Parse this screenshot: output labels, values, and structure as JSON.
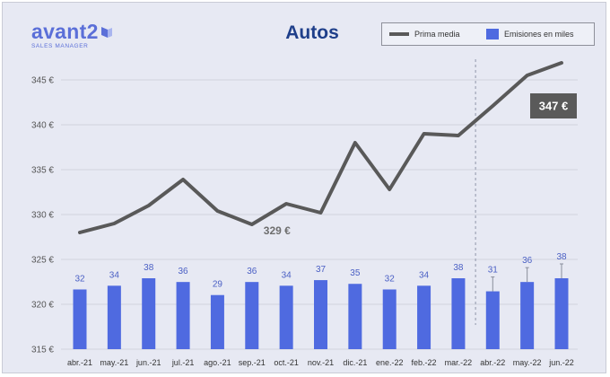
{
  "logo": {
    "name": "avant2",
    "tagline": "SALES MANAGER"
  },
  "chart_data": {
    "type": "bar+line",
    "title": "Autos",
    "categories": [
      "abr.-21",
      "may.-21",
      "jun.-21",
      "jul.-21",
      "ago.-21",
      "sep.-21",
      "oct.-21",
      "nov.-21",
      "dic.-21",
      "ene.-22",
      "feb.-22",
      "mar.-22",
      "abr.-22",
      "may.-22",
      "jun.-22"
    ],
    "series": [
      {
        "name": "Prima media",
        "kind": "line",
        "axis": "left",
        "color": "#595959",
        "values": [
          328.0,
          329.0,
          331.0,
          333.9,
          330.4,
          328.9,
          331.2,
          330.2,
          338.0,
          332.8,
          339.0,
          338.8,
          342.1,
          345.5,
          346.9
        ]
      },
      {
        "name": "Emisiones en miles",
        "kind": "bar",
        "axis": "secondary",
        "color": "#4f6ae0",
        "values": [
          32,
          34,
          38,
          36,
          29,
          36,
          34,
          37,
          35,
          32,
          34,
          38,
          31,
          36,
          38
        ],
        "error_bars_from_index": 12
      }
    ],
    "y_left": {
      "min": 315,
      "max": 345,
      "ticks": [
        315,
        320,
        325,
        330,
        335,
        340,
        345
      ],
      "tick_suffix": " €"
    },
    "annotations": [
      {
        "text": "329 €",
        "category": "sep.-21",
        "style": "plain-bold"
      },
      {
        "text": "347 €",
        "category": "jun.-22",
        "style": "dark-box"
      }
    ],
    "forecast_divider_after": "mar.-22",
    "legend_position": "top-right",
    "colors": {
      "background": "#e7e9f3",
      "grid": "#d2d4de",
      "bar": "#4f6ae0",
      "line": "#595959",
      "bar_label": "#4a5fc4"
    }
  }
}
